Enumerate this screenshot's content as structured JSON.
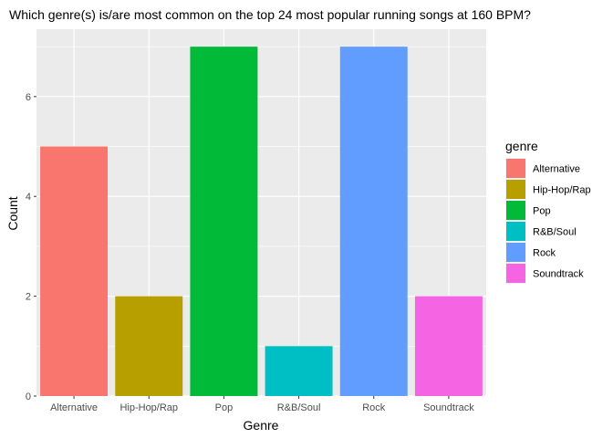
{
  "chart_data": {
    "type": "bar",
    "title": "Which genre(s) is/are most common on the top 24 most popular running songs at 160 BPM?",
    "xlabel": "Genre",
    "ylabel": "Count",
    "categories": [
      "Alternative",
      "Hip-Hop/Rap",
      "Pop",
      "R&B/Soul",
      "Rock",
      "Soundtrack"
    ],
    "values": [
      5,
      2,
      7,
      1,
      7,
      2
    ],
    "colors": [
      "#F8766D",
      "#B79F00",
      "#00BA38",
      "#00BFC4",
      "#619CFF",
      "#F564E3"
    ],
    "ylim": [
      0,
      7.35
    ],
    "yticks": [
      0,
      2,
      4,
      6
    ],
    "grid": true,
    "panel_background": "#EBEBEB",
    "legend": {
      "title": "genre",
      "placement": "right",
      "entries": [
        "Alternative",
        "Hip-Hop/Rap",
        "Pop",
        "R&B/Soul",
        "Rock",
        "Soundtrack"
      ]
    }
  }
}
